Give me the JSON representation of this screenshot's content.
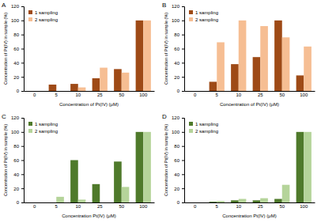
{
  "chart_data": [
    {
      "type": "bar",
      "title": "A",
      "x_label": "Concentration of Pt(IV) (μM)",
      "y_label": "Concentration of Pt(IV) in sample (%)",
      "categories": [
        "0",
        "5",
        "10",
        "25",
        "50",
        "100"
      ],
      "series": [
        {
          "name": "1 sampling",
          "color": "#9e4a16",
          "values": [
            0,
            9,
            10,
            18,
            31,
            100
          ]
        },
        {
          "name": "2 sampling",
          "color": "#f6be93",
          "values": [
            0,
            0,
            5,
            33,
            26,
            100
          ]
        }
      ],
      "ylim": [
        0,
        120
      ],
      "yticks": [
        0,
        20,
        40,
        60,
        80,
        100,
        120
      ],
      "legend": "upper left"
    },
    {
      "type": "bar",
      "title": "B",
      "x_label": "Concentration of Pt(IV) (μM)",
      "y_label": "Concentration of Pt(IV) in sample (%)",
      "categories": [
        "0",
        "5",
        "10",
        "25",
        "50",
        "100"
      ],
      "series": [
        {
          "name": "1 sampling",
          "color": "#9e4a16",
          "values": [
            0,
            13,
            38,
            48,
            100,
            22
          ]
        },
        {
          "name": "2 sampling",
          "color": "#f6be93",
          "values": [
            0,
            69,
            100,
            92,
            76,
            63
          ]
        }
      ],
      "ylim": [
        0,
        120
      ],
      "yticks": [
        0,
        20,
        40,
        60,
        80,
        100,
        120
      ],
      "legend": "upper left"
    },
    {
      "type": "bar",
      "title": "C",
      "x_label": "Concentration Pt(IV) (μM)",
      "y_label": "Concentration of Pt(IV) in sample (%)",
      "categories": [
        "0",
        "5",
        "10",
        "25",
        "50",
        "100"
      ],
      "series": [
        {
          "name": "1 sampling",
          "color": "#4f7a2b",
          "values": [
            0,
            0,
            60,
            26,
            58,
            100
          ]
        },
        {
          "name": "2 sampling",
          "color": "#b5d49a",
          "values": [
            0,
            8,
            4,
            0,
            22,
            100
          ]
        }
      ],
      "ylim": [
        0,
        120
      ],
      "yticks": [
        0,
        20,
        40,
        60,
        80,
        100,
        120
      ],
      "legend": "upper left"
    },
    {
      "type": "bar",
      "title": "D",
      "x_label": "Concentration Pt(IV) (μM)",
      "y_label": "Concentration of Pt(IV) in sample (%)",
      "categories": [
        "0",
        "5",
        "10",
        "25",
        "50",
        "100"
      ],
      "series": [
        {
          "name": "1 sampling",
          "color": "#4f7a2b",
          "values": [
            0,
            1,
            3,
            3,
            5,
            100
          ]
        },
        {
          "name": "2 sampling",
          "color": "#b5d49a",
          "values": [
            0,
            2,
            5,
            6,
            25,
            100
          ]
        }
      ],
      "ylim": [
        0,
        120
      ],
      "yticks": [
        0,
        20,
        40,
        60,
        80,
        100,
        120
      ],
      "legend": "upper left"
    }
  ]
}
